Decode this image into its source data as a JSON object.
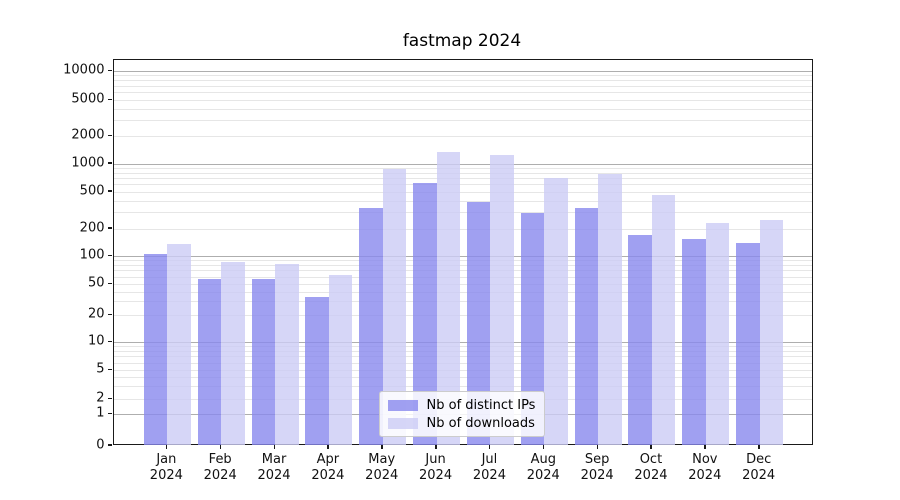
{
  "title": "fastmap 2024",
  "chart_data": {
    "type": "bar",
    "title": "fastmap 2024",
    "categories": [
      "Jan 2024",
      "Feb 2024",
      "Mar 2024",
      "Apr 2024",
      "May 2024",
      "Jun 2024",
      "Jul 2024",
      "Aug 2024",
      "Sep 2024",
      "Oct 2024",
      "Nov 2024",
      "Dec 2024"
    ],
    "series": [
      {
        "name": "Nb of distinct IPs",
        "color": "#8888ee",
        "alpha": 0.8,
        "values": [
          104,
          57,
          56,
          34,
          330,
          620,
          390,
          295,
          330,
          170,
          152,
          138
        ]
      },
      {
        "name": "Nb of downloads",
        "color": "#ccccf5",
        "alpha": 0.8,
        "values": [
          134,
          87,
          82,
          62,
          880,
          1320,
          1230,
          690,
          765,
          460,
          232,
          245
        ]
      }
    ],
    "xlabel": "",
    "ylabel": "",
    "yscale": "symlog",
    "ylim": [
      0,
      13000
    ],
    "yticks": [
      0,
      1,
      2,
      5,
      10,
      20,
      50,
      100,
      200,
      500,
      1000,
      2000,
      5000,
      10000
    ],
    "grid": true,
    "legend_position": "lower center"
  }
}
